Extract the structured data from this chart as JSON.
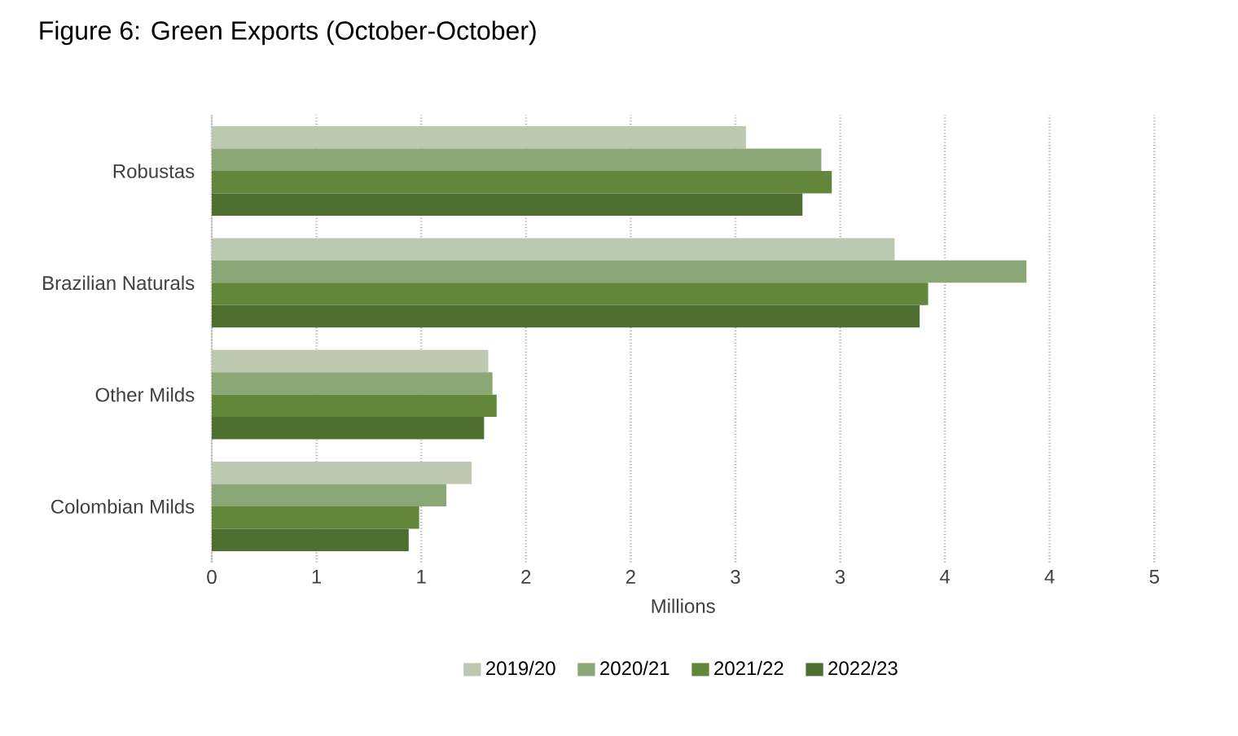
{
  "chart_data": {
    "type": "bar",
    "orientation": "horizontal",
    "title": "Figure 6: Green Exports (October-October)",
    "xlabel": "Millions",
    "categories": [
      "Robustas",
      "Brazilian Naturals",
      "Other Milds",
      "Colombian Milds"
    ],
    "series": [
      {
        "name": "2019/20",
        "color": "#bcc8b0",
        "values": [
          2.55,
          3.26,
          1.32,
          1.24
        ]
      },
      {
        "name": "2020/21",
        "color": "#8ba776",
        "values": [
          2.91,
          3.89,
          1.34,
          1.12
        ]
      },
      {
        "name": "2021/22",
        "color": "#62873b",
        "values": [
          2.96,
          3.42,
          1.36,
          0.99
        ]
      },
      {
        "name": "2022/23",
        "color": "#4f6f30",
        "values": [
          2.82,
          3.38,
          1.3,
          0.94
        ]
      }
    ],
    "xlim": [
      0,
      4.5
    ],
    "xticks": [
      0,
      {
        "value": 0.5,
        "label": "1"
      },
      1,
      {
        "value": 1.5,
        "label": "2"
      },
      2,
      {
        "value": 2.5,
        "label": "3"
      },
      3,
      {
        "value": 3.5,
        "label": "4"
      },
      4,
      {
        "value": 4.5,
        "label": "5"
      }
    ],
    "grid": "x",
    "legend": "bottom"
  }
}
